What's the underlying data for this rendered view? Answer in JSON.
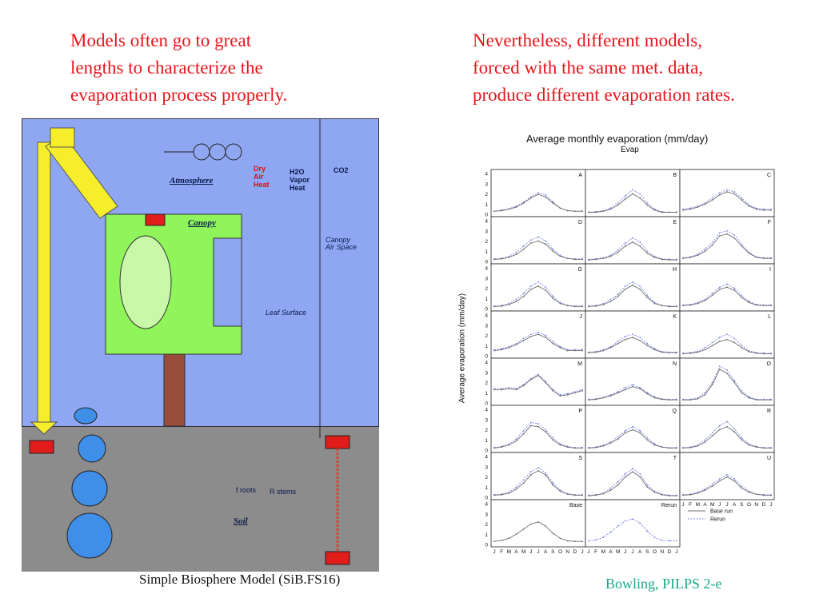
{
  "captions": {
    "left": "Models often go to great\nlengths to characterize the\nevaporation process properly.",
    "right": "Nevertheless, different models,\nforced with the same met. data,\nproduce different evaporation rates."
  },
  "credit": "Bowling, PILPS 2-e",
  "diagram": {
    "title": "Simple Biosphere Model (SiB.FS16)",
    "labels": {
      "atmosphere": "Atmosphere",
      "canopy": "Canopy",
      "soil": "Soil",
      "canopy_air_space": "Canopy\nAir Space",
      "dry_air_heat": "Dry\nAir\nHeat",
      "vapor_heat": "H2O\nVapor\nHeat",
      "co2": "CO2",
      "leaf_surface": "Leaf Surface",
      "roots": "f roots",
      "stems": "R stems"
    }
  },
  "chart_data": {
    "type": "line",
    "title": "Average monthly evaporation (mm/day)",
    "subtitle": "Evap",
    "ylabel": "Average evaporation (mm/day)",
    "ylim": [
      0,
      4
    ],
    "yticks": [
      "0",
      "1",
      "2",
      "3",
      "4"
    ],
    "x": [
      "J",
      "F",
      "M",
      "A",
      "M",
      "J",
      "J",
      "A",
      "S",
      "O",
      "N",
      "D",
      "J"
    ],
    "legend": {
      "entries": [
        "Base run",
        "Rerun"
      ],
      "colors": [
        "#6f6f6f",
        "#7b86e8"
      ]
    },
    "panels": [
      {
        "label": "A",
        "base": [
          0.3,
          0.35,
          0.5,
          0.7,
          1.1,
          1.6,
          1.95,
          1.7,
          1.1,
          0.6,
          0.35,
          0.3,
          0.3
        ],
        "rerun": [
          0.3,
          0.4,
          0.55,
          0.8,
          1.2,
          1.7,
          2.1,
          1.9,
          1.2,
          0.6,
          0.35,
          0.3,
          0.3
        ]
      },
      {
        "label": "B",
        "base": [
          0.2,
          0.2,
          0.3,
          0.5,
          0.9,
          1.5,
          2.0,
          1.6,
          0.9,
          0.4,
          0.2,
          0.2,
          0.2
        ],
        "rerun": [
          0.2,
          0.25,
          0.35,
          0.6,
          1.1,
          1.8,
          2.4,
          2.0,
          1.1,
          0.5,
          0.25,
          0.2,
          0.2
        ]
      },
      {
        "label": "C",
        "base": [
          0.4,
          0.5,
          0.7,
          1.0,
          1.4,
          1.9,
          2.2,
          2.0,
          1.4,
          0.8,
          0.5,
          0.4,
          0.4
        ],
        "rerun": [
          0.5,
          0.6,
          0.8,
          1.1,
          1.6,
          2.1,
          2.4,
          2.2,
          1.6,
          0.9,
          0.6,
          0.5,
          0.5
        ]
      },
      {
        "label": "D",
        "base": [
          0.2,
          0.25,
          0.4,
          0.7,
          1.2,
          1.8,
          2.0,
          1.7,
          1.0,
          0.5,
          0.3,
          0.2,
          0.2
        ],
        "rerun": [
          0.25,
          0.3,
          0.5,
          0.9,
          1.5,
          2.1,
          2.4,
          2.0,
          1.2,
          0.6,
          0.3,
          0.25,
          0.25
        ]
      },
      {
        "label": "E",
        "base": [
          0.15,
          0.2,
          0.3,
          0.5,
          0.9,
          1.5,
          1.9,
          1.5,
          0.8,
          0.4,
          0.2,
          0.15,
          0.15
        ],
        "rerun": [
          0.2,
          0.25,
          0.35,
          0.6,
          1.1,
          1.8,
          2.3,
          1.9,
          1.0,
          0.5,
          0.25,
          0.2,
          0.2
        ]
      },
      {
        "label": "F",
        "base": [
          0.3,
          0.4,
          0.6,
          1.0,
          1.6,
          2.5,
          2.7,
          2.3,
          1.5,
          0.8,
          0.4,
          0.3,
          0.3
        ],
        "rerun": [
          0.35,
          0.45,
          0.7,
          1.2,
          1.9,
          2.8,
          3.0,
          2.6,
          1.7,
          0.9,
          0.45,
          0.35,
          0.35
        ]
      },
      {
        "label": "G",
        "base": [
          0.2,
          0.25,
          0.4,
          0.7,
          1.2,
          1.9,
          2.2,
          1.8,
          1.0,
          0.5,
          0.3,
          0.2,
          0.2
        ],
        "rerun": [
          0.25,
          0.3,
          0.5,
          0.9,
          1.5,
          2.2,
          2.6,
          2.1,
          1.2,
          0.6,
          0.3,
          0.25,
          0.25
        ]
      },
      {
        "label": "H",
        "base": [
          0.2,
          0.25,
          0.4,
          0.7,
          1.2,
          1.9,
          2.3,
          1.9,
          1.1,
          0.5,
          0.3,
          0.2,
          0.2
        ],
        "rerun": [
          0.25,
          0.3,
          0.5,
          0.9,
          1.4,
          2.2,
          2.6,
          2.2,
          1.3,
          0.6,
          0.3,
          0.25,
          0.25
        ]
      },
      {
        "label": "I",
        "base": [
          0.3,
          0.35,
          0.5,
          0.8,
          1.3,
          1.9,
          2.1,
          1.8,
          1.1,
          0.6,
          0.35,
          0.3,
          0.3
        ],
        "rerun": [
          0.35,
          0.4,
          0.6,
          0.9,
          1.5,
          2.1,
          2.4,
          2.0,
          1.3,
          0.7,
          0.4,
          0.35,
          0.35
        ]
      },
      {
        "label": "J",
        "base": [
          0.5,
          0.6,
          0.8,
          1.1,
          1.5,
          1.9,
          2.1,
          1.8,
          1.2,
          0.8,
          0.5,
          0.5,
          0.5
        ],
        "rerun": [
          0.6,
          0.7,
          0.9,
          1.2,
          1.7,
          2.1,
          2.3,
          2.0,
          1.4,
          0.9,
          0.6,
          0.6,
          0.6
        ]
      },
      {
        "label": "K",
        "base": [
          0.3,
          0.35,
          0.5,
          0.8,
          1.2,
          1.6,
          1.8,
          1.5,
          1.0,
          0.6,
          0.35,
          0.3,
          0.3
        ],
        "rerun": [
          0.35,
          0.4,
          0.6,
          0.9,
          1.4,
          1.9,
          2.1,
          1.8,
          1.2,
          0.7,
          0.4,
          0.35,
          0.35
        ]
      },
      {
        "label": "L",
        "base": [
          0.2,
          0.25,
          0.35,
          0.6,
          1.0,
          1.4,
          1.6,
          1.3,
          0.8,
          0.4,
          0.25,
          0.2,
          0.2
        ],
        "rerun": [
          0.25,
          0.3,
          0.45,
          0.8,
          1.3,
          1.8,
          2.1,
          1.7,
          1.0,
          0.5,
          0.3,
          0.25,
          0.25
        ]
      },
      {
        "label": "M",
        "base": [
          1.3,
          1.3,
          1.4,
          1.3,
          1.7,
          2.3,
          2.7,
          2.0,
          1.2,
          0.7,
          0.8,
          1.0,
          1.2
        ],
        "rerun": [
          1.4,
          1.4,
          1.5,
          1.4,
          1.8,
          2.4,
          2.8,
          2.1,
          1.3,
          0.8,
          0.9,
          1.1,
          1.3
        ]
      },
      {
        "label": "N",
        "base": [
          0.3,
          0.35,
          0.5,
          0.7,
          1.0,
          1.3,
          1.6,
          1.4,
          0.9,
          0.5,
          0.35,
          0.3,
          0.3
        ],
        "rerun": [
          0.35,
          0.4,
          0.55,
          0.8,
          1.1,
          1.5,
          1.8,
          1.5,
          1.0,
          0.6,
          0.4,
          0.35,
          0.35
        ]
      },
      {
        "label": "O",
        "base": [
          0.3,
          0.3,
          0.4,
          0.8,
          1.8,
          3.3,
          2.9,
          2.0,
          1.0,
          0.5,
          0.3,
          0.3,
          0.3
        ],
        "rerun": [
          0.35,
          0.35,
          0.5,
          1.0,
          2.0,
          3.6,
          3.2,
          2.2,
          1.2,
          0.6,
          0.35,
          0.35,
          0.35
        ]
      },
      {
        "label": "P",
        "base": [
          0.2,
          0.3,
          0.5,
          0.9,
          1.6,
          2.4,
          2.3,
          1.8,
          1.0,
          0.5,
          0.3,
          0.2,
          0.2
        ],
        "rerun": [
          0.25,
          0.35,
          0.6,
          1.1,
          1.9,
          2.7,
          2.6,
          2.0,
          1.2,
          0.6,
          0.35,
          0.25,
          0.25
        ]
      },
      {
        "label": "Q",
        "base": [
          0.2,
          0.25,
          0.4,
          0.7,
          1.1,
          1.7,
          2.0,
          1.7,
          1.0,
          0.5,
          0.3,
          0.2,
          0.2
        ],
        "rerun": [
          0.25,
          0.3,
          0.5,
          0.8,
          1.3,
          1.9,
          2.3,
          1.9,
          1.2,
          0.6,
          0.3,
          0.25,
          0.25
        ]
      },
      {
        "label": "R",
        "base": [
          0.2,
          0.25,
          0.4,
          0.8,
          1.4,
          2.0,
          2.3,
          1.8,
          1.0,
          0.5,
          0.3,
          0.2,
          0.2
        ],
        "rerun": [
          0.25,
          0.3,
          0.5,
          1.0,
          1.7,
          2.4,
          2.8,
          2.1,
          1.2,
          0.6,
          0.35,
          0.25,
          0.25
        ]
      },
      {
        "label": "S",
        "base": [
          0.2,
          0.25,
          0.4,
          0.8,
          1.4,
          2.2,
          2.6,
          2.2,
          1.2,
          0.6,
          0.3,
          0.2,
          0.2
        ],
        "rerun": [
          0.25,
          0.3,
          0.5,
          1.0,
          1.7,
          2.5,
          2.9,
          2.4,
          1.4,
          0.7,
          0.35,
          0.25,
          0.25
        ]
      },
      {
        "label": "T",
        "base": [
          0.15,
          0.2,
          0.35,
          0.7,
          1.2,
          2.0,
          2.5,
          2.0,
          1.0,
          0.5,
          0.25,
          0.15,
          0.15
        ],
        "rerun": [
          0.2,
          0.25,
          0.4,
          0.9,
          1.5,
          2.3,
          2.8,
          2.3,
          1.2,
          0.6,
          0.3,
          0.2,
          0.2
        ]
      },
      {
        "label": "U",
        "base": [
          0.2,
          0.25,
          0.4,
          0.7,
          1.1,
          1.6,
          2.0,
          1.6,
          0.9,
          0.5,
          0.3,
          0.2,
          0.2
        ],
        "rerun": [
          0.25,
          0.3,
          0.5,
          0.8,
          1.3,
          1.8,
          2.2,
          1.8,
          1.1,
          0.6,
          0.3,
          0.25,
          0.25
        ]
      },
      {
        "label": "Base",
        "base": [
          0.3,
          0.4,
          0.6,
          1.0,
          1.5,
          2.0,
          2.2,
          1.8,
          1.1,
          0.6,
          0.35,
          0.3,
          0.3
        ],
        "rerun": null
      },
      {
        "label": "Rerun",
        "base": null,
        "rerun": [
          0.35,
          0.45,
          0.7,
          1.2,
          1.8,
          2.3,
          2.5,
          2.1,
          1.3,
          0.7,
          0.4,
          0.35,
          0.35
        ]
      }
    ]
  }
}
